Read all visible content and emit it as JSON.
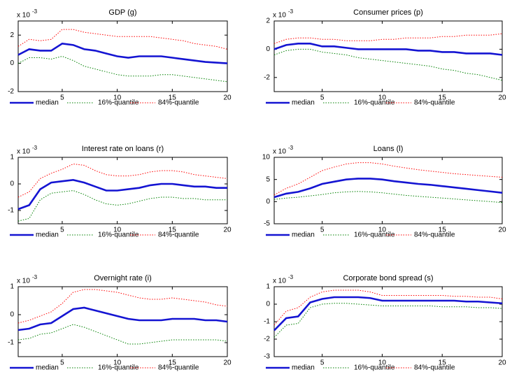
{
  "chart_data": [
    {
      "type": "line",
      "title": "GDP (g)",
      "multiplier": "x 10",
      "multiplier_exponent": "-3",
      "x": [
        1,
        2,
        3,
        4,
        5,
        6,
        7,
        8,
        9,
        10,
        11,
        12,
        13,
        14,
        15,
        16,
        17,
        18,
        19,
        20
      ],
      "xlim": [
        1,
        20
      ],
      "xticks": [
        5,
        10,
        15,
        20
      ],
      "ylim": [
        -2,
        3
      ],
      "yticks": [
        -2,
        0,
        2
      ],
      "series": [
        {
          "name": "median",
          "color": "#1414d2",
          "style": "solid",
          "values": [
            0.6,
            1.0,
            0.9,
            0.9,
            1.4,
            1.3,
            1.0,
            0.9,
            0.7,
            0.5,
            0.4,
            0.5,
            0.5,
            0.5,
            0.4,
            0.3,
            0.2,
            0.1,
            0.05,
            0.0
          ]
        },
        {
          "name": "16%-quantile",
          "color": "#008000",
          "style": "dotted",
          "values": [
            0.0,
            0.4,
            0.4,
            0.3,
            0.5,
            0.2,
            -0.2,
            -0.4,
            -0.6,
            -0.8,
            -0.9,
            -0.9,
            -0.9,
            -0.8,
            -0.8,
            -0.9,
            -1.0,
            -1.1,
            -1.2,
            -1.3
          ]
        },
        {
          "name": "84%-quantile",
          "color": "#ff0000",
          "style": "dotted",
          "values": [
            1.2,
            1.7,
            1.6,
            1.7,
            2.4,
            2.4,
            2.2,
            2.1,
            2.0,
            1.9,
            1.9,
            1.9,
            1.9,
            1.8,
            1.7,
            1.6,
            1.4,
            1.3,
            1.2,
            1.0
          ]
        }
      ]
    },
    {
      "type": "line",
      "title": "Consumer prices (p)",
      "multiplier": "x 10",
      "multiplier_exponent": "-3",
      "x": [
        1,
        2,
        3,
        4,
        5,
        6,
        7,
        8,
        9,
        10,
        11,
        12,
        13,
        14,
        15,
        16,
        17,
        18,
        19,
        20
      ],
      "xlim": [
        1,
        20
      ],
      "xticks": [
        5,
        10,
        15,
        20
      ],
      "ylim": [
        -3,
        2
      ],
      "yticks": [
        -2,
        0,
        2
      ],
      "series": [
        {
          "name": "median",
          "color": "#1414d2",
          "style": "solid",
          "values": [
            0.0,
            0.3,
            0.4,
            0.4,
            0.2,
            0.2,
            0.1,
            0.0,
            0.0,
            0.0,
            0.0,
            0.0,
            -0.1,
            -0.1,
            -0.2,
            -0.2,
            -0.3,
            -0.3,
            -0.3,
            -0.4
          ]
        },
        {
          "name": "16%-quantile",
          "color": "#008000",
          "style": "dotted",
          "values": [
            -0.4,
            -0.1,
            0.0,
            0.0,
            -0.2,
            -0.3,
            -0.4,
            -0.6,
            -0.7,
            -0.8,
            -0.9,
            -1.0,
            -1.1,
            -1.2,
            -1.4,
            -1.5,
            -1.7,
            -1.8,
            -2.0,
            -2.2
          ]
        },
        {
          "name": "84%-quantile",
          "color": "#ff0000",
          "style": "dotted",
          "values": [
            0.4,
            0.7,
            0.8,
            0.8,
            0.7,
            0.7,
            0.6,
            0.6,
            0.6,
            0.7,
            0.7,
            0.8,
            0.8,
            0.8,
            0.9,
            0.9,
            1.0,
            1.0,
            1.0,
            1.1
          ]
        }
      ]
    },
    {
      "type": "line",
      "title": "Interest rate on loans (r)",
      "multiplier": "x 10",
      "multiplier_exponent": "-3",
      "x": [
        1,
        2,
        3,
        4,
        5,
        6,
        7,
        8,
        9,
        10,
        11,
        12,
        13,
        14,
        15,
        16,
        17,
        18,
        19,
        20
      ],
      "xlim": [
        1,
        20
      ],
      "xticks": [
        5,
        10,
        15,
        20
      ],
      "ylim": [
        -1.5,
        1
      ],
      "yticks": [
        -1,
        0,
        1
      ],
      "series": [
        {
          "name": "median",
          "color": "#1414d2",
          "style": "solid",
          "values": [
            -0.95,
            -0.8,
            -0.2,
            0.05,
            0.1,
            0.15,
            0.05,
            -0.1,
            -0.25,
            -0.25,
            -0.2,
            -0.15,
            -0.05,
            0.0,
            0.0,
            -0.05,
            -0.1,
            -0.1,
            -0.15,
            -0.15
          ]
        },
        {
          "name": "16%-quantile",
          "color": "#008000",
          "style": "dotted",
          "values": [
            -1.4,
            -1.3,
            -0.6,
            -0.35,
            -0.3,
            -0.25,
            -0.4,
            -0.6,
            -0.75,
            -0.8,
            -0.75,
            -0.65,
            -0.55,
            -0.5,
            -0.5,
            -0.55,
            -0.55,
            -0.6,
            -0.6,
            -0.6
          ]
        },
        {
          "name": "84%-quantile",
          "color": "#ff0000",
          "style": "dotted",
          "values": [
            -0.5,
            -0.3,
            0.2,
            0.4,
            0.55,
            0.75,
            0.7,
            0.5,
            0.35,
            0.3,
            0.3,
            0.35,
            0.45,
            0.5,
            0.5,
            0.45,
            0.35,
            0.3,
            0.25,
            0.2
          ]
        }
      ]
    },
    {
      "type": "line",
      "title": "Loans (l)",
      "multiplier": "x 10",
      "multiplier_exponent": "-3",
      "x": [
        1,
        2,
        3,
        4,
        5,
        6,
        7,
        8,
        9,
        10,
        11,
        12,
        13,
        14,
        15,
        16,
        17,
        18,
        19,
        20
      ],
      "xlim": [
        1,
        20
      ],
      "xticks": [
        5,
        10,
        15,
        20
      ],
      "ylim": [
        -5,
        10
      ],
      "yticks": [
        -5,
        0,
        5,
        10
      ],
      "series": [
        {
          "name": "median",
          "color": "#1414d2",
          "style": "solid",
          "values": [
            1,
            1.8,
            2.2,
            3,
            4,
            4.5,
            5,
            5.2,
            5.2,
            5,
            4.6,
            4.3,
            4,
            3.8,
            3.5,
            3.2,
            2.9,
            2.6,
            2.3,
            2
          ]
        },
        {
          "name": "16%-quantile",
          "color": "#008000",
          "style": "dotted",
          "values": [
            0.5,
            0.8,
            1.0,
            1.3,
            1.6,
            2.0,
            2.2,
            2.3,
            2.2,
            2.0,
            1.7,
            1.4,
            1.2,
            1.0,
            0.8,
            0.6,
            0.4,
            0.2,
            0,
            -0.2
          ]
        },
        {
          "name": "84%-quantile",
          "color": "#ff0000",
          "style": "dotted",
          "values": [
            1.5,
            3,
            4,
            5.5,
            7,
            7.8,
            8.5,
            8.8,
            8.8,
            8.5,
            8,
            7.6,
            7.2,
            6.9,
            6.6,
            6.3,
            6.1,
            5.9,
            5.7,
            5.5
          ]
        }
      ]
    },
    {
      "type": "line",
      "title": "Overnight rate (i)",
      "multiplier": "x 10",
      "multiplier_exponent": "-3",
      "x": [
        1,
        2,
        3,
        4,
        5,
        6,
        7,
        8,
        9,
        10,
        11,
        12,
        13,
        14,
        15,
        16,
        17,
        18,
        19,
        20
      ],
      "xlim": [
        1,
        20
      ],
      "xticks": [
        5,
        10,
        15,
        20
      ],
      "ylim": [
        -1.5,
        1
      ],
      "yticks": [
        -1,
        0,
        1
      ],
      "series": [
        {
          "name": "median",
          "color": "#1414d2",
          "style": "solid",
          "values": [
            -0.55,
            -0.5,
            -0.35,
            -0.3,
            -0.05,
            0.2,
            0.25,
            0.15,
            0.05,
            -0.05,
            -0.15,
            -0.2,
            -0.2,
            -0.2,
            -0.15,
            -0.15,
            -0.15,
            -0.2,
            -0.2,
            -0.25
          ]
        },
        {
          "name": "16%-quantile",
          "color": "#008000",
          "style": "dotted",
          "values": [
            -0.9,
            -0.85,
            -0.7,
            -0.65,
            -0.5,
            -0.35,
            -0.45,
            -0.6,
            -0.75,
            -0.9,
            -1.05,
            -1.05,
            -1.0,
            -0.95,
            -0.9,
            -0.9,
            -0.9,
            -0.9,
            -0.9,
            -0.95
          ]
        },
        {
          "name": "84%-quantile",
          "color": "#ff0000",
          "style": "dotted",
          "values": [
            -0.3,
            -0.2,
            -0.05,
            0.1,
            0.4,
            0.8,
            0.9,
            0.9,
            0.85,
            0.8,
            0.7,
            0.6,
            0.55,
            0.55,
            0.6,
            0.55,
            0.5,
            0.45,
            0.35,
            0.3
          ]
        }
      ]
    },
    {
      "type": "line",
      "title": "Corporate bond spread (s)",
      "multiplier": "x 10",
      "multiplier_exponent": "-3",
      "x": [
        1,
        2,
        3,
        4,
        5,
        6,
        7,
        8,
        9,
        10,
        11,
        12,
        13,
        14,
        15,
        16,
        17,
        18,
        19,
        20
      ],
      "xlim": [
        1,
        20
      ],
      "xticks": [
        5,
        10,
        15,
        20
      ],
      "ylim": [
        -3,
        1
      ],
      "yticks": [
        -3,
        -2,
        -1,
        0,
        1
      ],
      "series": [
        {
          "name": "median",
          "color": "#1414d2",
          "style": "solid",
          "values": [
            -1.5,
            -0.8,
            -0.7,
            0.1,
            0.3,
            0.4,
            0.4,
            0.4,
            0.35,
            0.2,
            0.2,
            0.2,
            0.2,
            0.2,
            0.2,
            0.2,
            0.15,
            0.15,
            0.1,
            0.05
          ]
        },
        {
          "name": "16%-quantile",
          "color": "#008000",
          "style": "dotted",
          "values": [
            -1.9,
            -1.2,
            -1.1,
            -0.2,
            0.0,
            0.05,
            0.05,
            0.0,
            -0.05,
            -0.1,
            -0.1,
            -0.1,
            -0.1,
            -0.1,
            -0.15,
            -0.15,
            -0.15,
            -0.2,
            -0.2,
            -0.25
          ]
        },
        {
          "name": "84%-quantile",
          "color": "#ff0000",
          "style": "dotted",
          "values": [
            -1.2,
            -0.4,
            -0.2,
            0.4,
            0.7,
            0.8,
            0.8,
            0.8,
            0.7,
            0.5,
            0.5,
            0.5,
            0.5,
            0.5,
            0.5,
            0.45,
            0.45,
            0.4,
            0.4,
            0.3
          ]
        }
      ]
    }
  ]
}
